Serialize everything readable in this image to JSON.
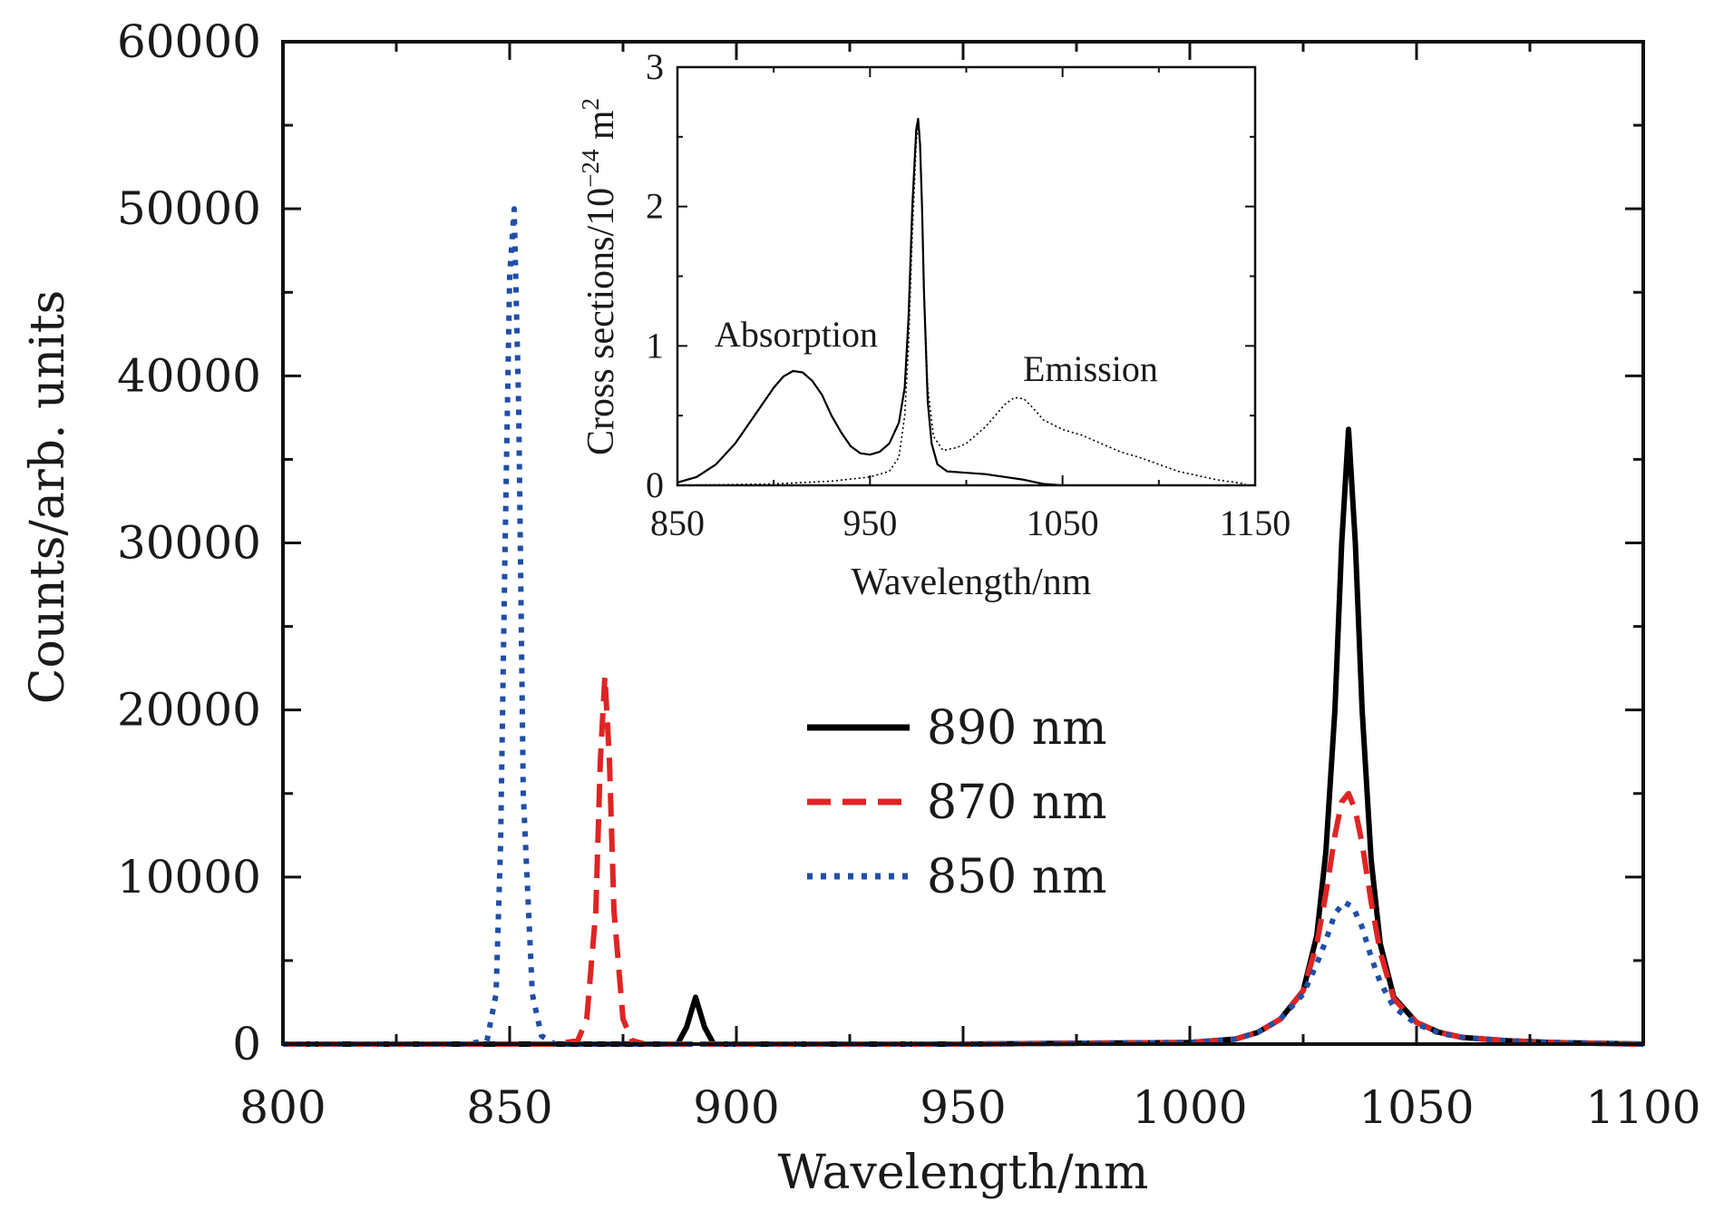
{
  "chart_data": [
    {
      "type": "line",
      "xlabel": "Wavelength/nm",
      "ylabel": "Counts/arb. units",
      "xlim": [
        800,
        1100
      ],
      "ylim": [
        0,
        60000
      ],
      "xticks": [
        "800",
        "850",
        "900",
        "950",
        "1000",
        "1050",
        "1100"
      ],
      "yticks": [
        "0",
        "10000",
        "20000",
        "30000",
        "40000",
        "50000",
        "60000"
      ],
      "grid": false,
      "legend_position": "center-right",
      "series": [
        {
          "name": "890 nm",
          "color": "#000000",
          "style": "solid",
          "x": [
            800,
            850,
            880,
            887,
            889,
            891,
            893,
            895,
            900,
            950,
            1000,
            1010,
            1015,
            1020,
            1025,
            1028,
            1030,
            1032,
            1033.5,
            1035,
            1036.5,
            1038,
            1040,
            1042,
            1045,
            1050,
            1055,
            1060,
            1070,
            1080,
            1090,
            1100
          ],
          "y": [
            0,
            0,
            0,
            0,
            1000,
            2800,
            1000,
            0,
            0,
            0,
            100,
            300,
            700,
            1500,
            3200,
            6500,
            11500,
            20000,
            30000,
            36800,
            30000,
            20000,
            11000,
            6000,
            2800,
            1300,
            700,
            400,
            200,
            100,
            50,
            0
          ]
        },
        {
          "name": "870 nm",
          "color": "#e02424",
          "style": "dashed",
          "x": [
            800,
            850,
            860,
            865,
            867,
            869,
            870,
            871,
            872,
            873,
            875,
            877,
            880,
            885,
            900,
            950,
            1000,
            1010,
            1015,
            1020,
            1025,
            1028,
            1030,
            1032,
            1033.5,
            1035,
            1036.5,
            1038,
            1040,
            1042,
            1045,
            1050,
            1055,
            1060,
            1070,
            1080,
            1090,
            1100
          ],
          "y": [
            0,
            0,
            0,
            200,
            1500,
            8000,
            17000,
            22000,
            17000,
            8000,
            1500,
            200,
            0,
            0,
            0,
            0,
            100,
            300,
            700,
            1500,
            3200,
            6000,
            9000,
            12500,
            14500,
            15000,
            14000,
            12000,
            8500,
            5500,
            2700,
            1300,
            700,
            400,
            200,
            100,
            50,
            0
          ]
        },
        {
          "name": "850 nm",
          "color": "#1f4fa6",
          "style": "dotted",
          "x": [
            800,
            840,
            845,
            847,
            848,
            849,
            850,
            851,
            852,
            853,
            855,
            857,
            860,
            900,
            950,
            1000,
            1010,
            1015,
            1020,
            1025,
            1028,
            1030,
            1032,
            1034,
            1036,
            1038,
            1040,
            1042,
            1045,
            1050,
            1055,
            1060,
            1070,
            1080,
            1090,
            1100
          ],
          "y": [
            0,
            0,
            200,
            3000,
            12000,
            30000,
            46000,
            50000,
            38000,
            15000,
            3000,
            500,
            0,
            0,
            0,
            100,
            300,
            700,
            1500,
            3000,
            4800,
            6200,
            7800,
            8500,
            8200,
            7000,
            5200,
            3700,
            2200,
            1200,
            650,
            400,
            200,
            100,
            50,
            0
          ]
        }
      ]
    },
    {
      "type": "line",
      "xlabel": "Wavelength/nm",
      "ylabel": "Cross sections/10−24 m2",
      "ylabel_parts": {
        "main": "Cross sections/10",
        "exp": "−24",
        "unit": " m",
        "unit_exp": "2"
      },
      "xlim": [
        850,
        1150
      ],
      "ylim": [
        0,
        3
      ],
      "xticks": [
        "850",
        "950",
        "1050",
        "1150"
      ],
      "yticks": [
        "0",
        "1",
        "2",
        "3"
      ],
      "annotations": [
        "Absorption",
        "Emission"
      ],
      "series": [
        {
          "color": "#000000",
          "style": "solid",
          "x": [
            850,
            860,
            870,
            880,
            890,
            900,
            905,
            910,
            915,
            920,
            925,
            930,
            935,
            940,
            945,
            950,
            955,
            960,
            965,
            968,
            970,
            972,
            974,
            975,
            976,
            977,
            978,
            980,
            982,
            985,
            990,
            1000,
            1010,
            1020,
            1030,
            1040,
            1045,
            1050
          ],
          "y": [
            0.02,
            0.06,
            0.15,
            0.3,
            0.5,
            0.7,
            0.78,
            0.82,
            0.81,
            0.75,
            0.65,
            0.5,
            0.38,
            0.28,
            0.23,
            0.22,
            0.24,
            0.3,
            0.45,
            0.7,
            1.2,
            2.0,
            2.55,
            2.63,
            2.45,
            2.0,
            1.4,
            0.6,
            0.3,
            0.15,
            0.1,
            0.09,
            0.08,
            0.06,
            0.04,
            0.01,
            0.005,
            0
          ]
        },
        {
          "color": "#000000",
          "style": "dotted",
          "x": [
            850,
            900,
            930,
            950,
            960,
            965,
            968,
            970,
            972,
            974,
            975,
            976,
            977,
            978,
            980,
            983,
            988,
            995,
            1000,
            1010,
            1020,
            1025,
            1030,
            1035,
            1040,
            1050,
            1060,
            1070,
            1080,
            1090,
            1100,
            1110,
            1120,
            1130,
            1140,
            1145
          ],
          "y": [
            0,
            0.01,
            0.03,
            0.06,
            0.1,
            0.2,
            0.5,
            1.0,
            1.8,
            2.45,
            2.6,
            2.45,
            2.0,
            1.4,
            0.7,
            0.35,
            0.25,
            0.27,
            0.3,
            0.42,
            0.58,
            0.63,
            0.62,
            0.55,
            0.47,
            0.4,
            0.36,
            0.3,
            0.24,
            0.2,
            0.15,
            0.1,
            0.07,
            0.04,
            0.02,
            0.01
          ]
        }
      ]
    }
  ]
}
